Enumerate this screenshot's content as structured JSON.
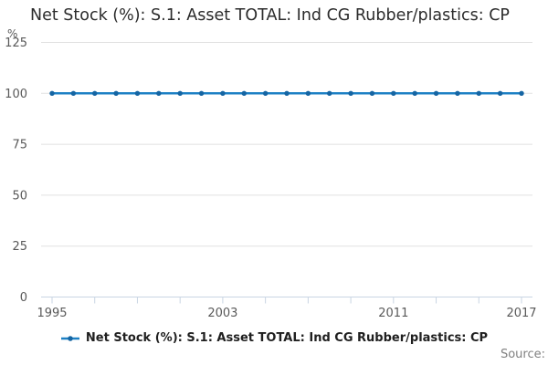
{
  "header": {
    "title": "Net Stock (%): S.1: Asset TOTAL: Ind CG Rubber/plastics: CP"
  },
  "y_axis": {
    "unit_label": "%"
  },
  "legend": {
    "series_label": "Net Stock (%): S.1: Asset TOTAL: Ind CG Rubber/plastics: CP"
  },
  "footer": {
    "source_label": "Source:"
  },
  "colors": {
    "line": "#1d80c4",
    "marker": "#1565a3",
    "gridline": "#e1e1e1",
    "axis_line": "#c9d5e3",
    "tick_label": "#595959",
    "title_text": "#2b2b2b",
    "legend_text": "#1f1f1f",
    "source_text": "#808080"
  },
  "chart_data": {
    "type": "line",
    "title": "Net Stock (%): S.1: Asset TOTAL: Ind CG Rubber/plastics: CP",
    "x": [
      1995,
      1996,
      1997,
      1998,
      1999,
      2000,
      2001,
      2002,
      2003,
      2004,
      2005,
      2006,
      2007,
      2008,
      2009,
      2010,
      2011,
      2012,
      2013,
      2014,
      2015,
      2016,
      2017
    ],
    "series": [
      {
        "name": "Net Stock (%): S.1: Asset TOTAL: Ind CG Rubber/plastics: CP",
        "values": [
          100,
          100,
          100,
          100,
          100,
          100,
          100,
          100,
          100,
          100,
          100,
          100,
          100,
          100,
          100,
          100,
          100,
          100,
          100,
          100,
          100,
          100,
          100
        ]
      }
    ],
    "xlabel": "",
    "ylabel": "%",
    "ylim": [
      0,
      125
    ],
    "yticks": [
      0,
      25,
      50,
      75,
      100,
      125
    ],
    "xtick_labels": [
      1995,
      2003,
      2011,
      2017
    ],
    "xtick_interval": 2,
    "grid": "horizontal-only",
    "legend_position": "bottom-center",
    "marker": "circle"
  }
}
